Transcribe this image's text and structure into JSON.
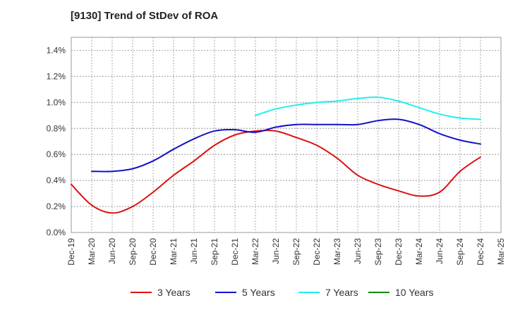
{
  "chart_data": {
    "type": "line",
    "title": "[9130]  Trend of StDev of ROA",
    "xlabel": "",
    "ylabel": "",
    "x_ticks": [
      "Dec-19",
      "Mar-20",
      "Jun-20",
      "Sep-20",
      "Dec-20",
      "Mar-21",
      "Jun-21",
      "Sep-21",
      "Dec-21",
      "Mar-22",
      "Jun-22",
      "Sep-22",
      "Dec-22",
      "Mar-23",
      "Jun-23",
      "Sep-23",
      "Dec-23",
      "Mar-24",
      "Jun-24",
      "Sep-24",
      "Dec-24",
      "Mar-25"
    ],
    "y_ticks": [
      "0.0%",
      "0.2%",
      "0.4%",
      "0.6%",
      "0.8%",
      "1.0%",
      "1.2%",
      "1.4%"
    ],
    "ylim": [
      0.0,
      1.5
    ],
    "grid": true,
    "legend_position": "bottom",
    "series": [
      {
        "name": "3 Years",
        "color": "#dd1111",
        "x": [
          "Dec-19",
          "Mar-20",
          "Jun-20",
          "Sep-20",
          "Dec-20",
          "Mar-21",
          "Jun-21",
          "Sep-21",
          "Dec-21",
          "Mar-22",
          "Jun-22",
          "Sep-22",
          "Dec-22",
          "Mar-23",
          "Jun-23",
          "Sep-23",
          "Dec-23",
          "Mar-24",
          "Jun-24",
          "Sep-24",
          "Dec-24"
        ],
        "values": [
          0.37,
          0.21,
          0.15,
          0.2,
          0.31,
          0.44,
          0.55,
          0.67,
          0.75,
          0.78,
          0.78,
          0.73,
          0.67,
          0.57,
          0.44,
          0.37,
          0.32,
          0.28,
          0.31,
          0.47,
          0.58
        ]
      },
      {
        "name": "5 Years",
        "color": "#1111cc",
        "x": [
          "Mar-20",
          "Jun-20",
          "Sep-20",
          "Dec-20",
          "Mar-21",
          "Jun-21",
          "Sep-21",
          "Dec-21",
          "Mar-22",
          "Jun-22",
          "Sep-22",
          "Dec-22",
          "Mar-23",
          "Jun-23",
          "Sep-23",
          "Dec-23",
          "Mar-24",
          "Jun-24",
          "Sep-24",
          "Dec-24"
        ],
        "values": [
          0.47,
          0.47,
          0.49,
          0.55,
          0.64,
          0.72,
          0.78,
          0.79,
          0.77,
          0.81,
          0.83,
          0.83,
          0.83,
          0.83,
          0.86,
          0.87,
          0.83,
          0.76,
          0.71,
          0.68
        ]
      },
      {
        "name": "7 Years",
        "color": "#22eeee",
        "x": [
          "Mar-22",
          "Jun-22",
          "Sep-22",
          "Dec-22",
          "Mar-23",
          "Jun-23",
          "Sep-23",
          "Dec-23",
          "Mar-24",
          "Jun-24",
          "Sep-24",
          "Dec-24"
        ],
        "values": [
          0.9,
          0.95,
          0.98,
          1.0,
          1.01,
          1.03,
          1.04,
          1.01,
          0.96,
          0.91,
          0.88,
          0.87
        ]
      },
      {
        "name": "10 Years",
        "color": "#118811",
        "x": [],
        "values": []
      }
    ]
  }
}
